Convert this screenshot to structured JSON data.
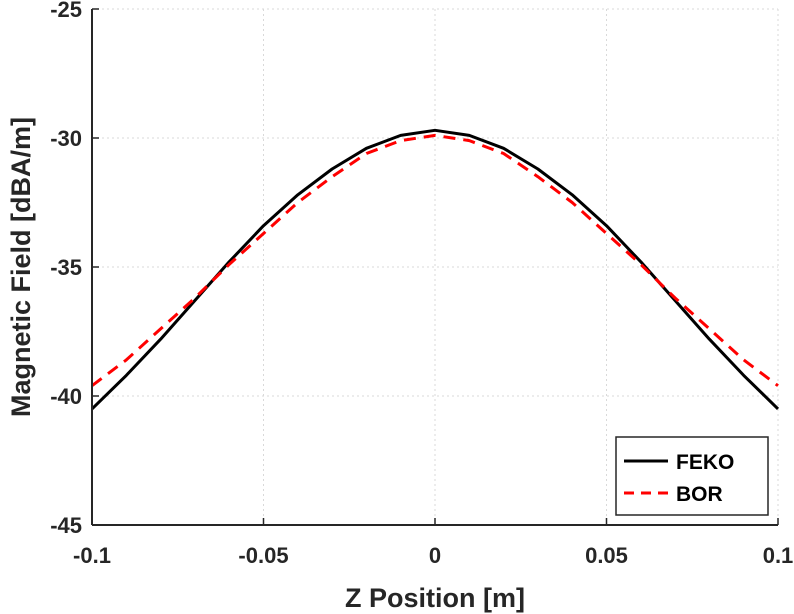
{
  "chart_data": {
    "type": "line",
    "title": "",
    "xlabel": "Z Position [m]",
    "ylabel": "Magnetic Field [dBA/m]",
    "xlim": [
      -0.1,
      0.1
    ],
    "ylim": [
      -45,
      -25
    ],
    "xticks": [
      -0.1,
      -0.05,
      0,
      0.05,
      0.1
    ],
    "xtick_labels": [
      "-0.1",
      "-0.05",
      "0",
      "0.05",
      "0.1"
    ],
    "yticks": [
      -45,
      -40,
      -35,
      -30,
      -25
    ],
    "ytick_labels": [
      "-45",
      "-40",
      "-35",
      "-30",
      "-25"
    ],
    "grid": true,
    "legend_position": "bottom-right",
    "series": [
      {
        "name": "FEKO",
        "color": "#000000",
        "style": "solid",
        "x": [
          -0.1,
          -0.09,
          -0.08,
          -0.07,
          -0.06,
          -0.05,
          -0.04,
          -0.03,
          -0.02,
          -0.01,
          0,
          0.01,
          0.02,
          0.03,
          0.04,
          0.05,
          0.06,
          0.07,
          0.08,
          0.09,
          0.1
        ],
        "y": [
          -40.5,
          -39.2,
          -37.8,
          -36.3,
          -34.8,
          -33.4,
          -32.2,
          -31.2,
          -30.4,
          -29.9,
          -29.7,
          -29.9,
          -30.4,
          -31.2,
          -32.2,
          -33.4,
          -34.8,
          -36.3,
          -37.8,
          -39.2,
          -40.5
        ]
      },
      {
        "name": "BOR",
        "color": "#ff0000",
        "style": "dashed",
        "x": [
          -0.1,
          -0.09,
          -0.08,
          -0.07,
          -0.06,
          -0.05,
          -0.04,
          -0.03,
          -0.02,
          -0.01,
          0,
          0.01,
          0.02,
          0.03,
          0.04,
          0.05,
          0.06,
          0.07,
          0.08,
          0.09,
          0.1
        ],
        "y": [
          -39.6,
          -38.6,
          -37.4,
          -36.2,
          -34.9,
          -33.7,
          -32.5,
          -31.5,
          -30.6,
          -30.1,
          -29.9,
          -30.1,
          -30.6,
          -31.5,
          -32.5,
          -33.7,
          -34.9,
          -36.2,
          -37.4,
          -38.6,
          -39.6
        ]
      }
    ]
  }
}
